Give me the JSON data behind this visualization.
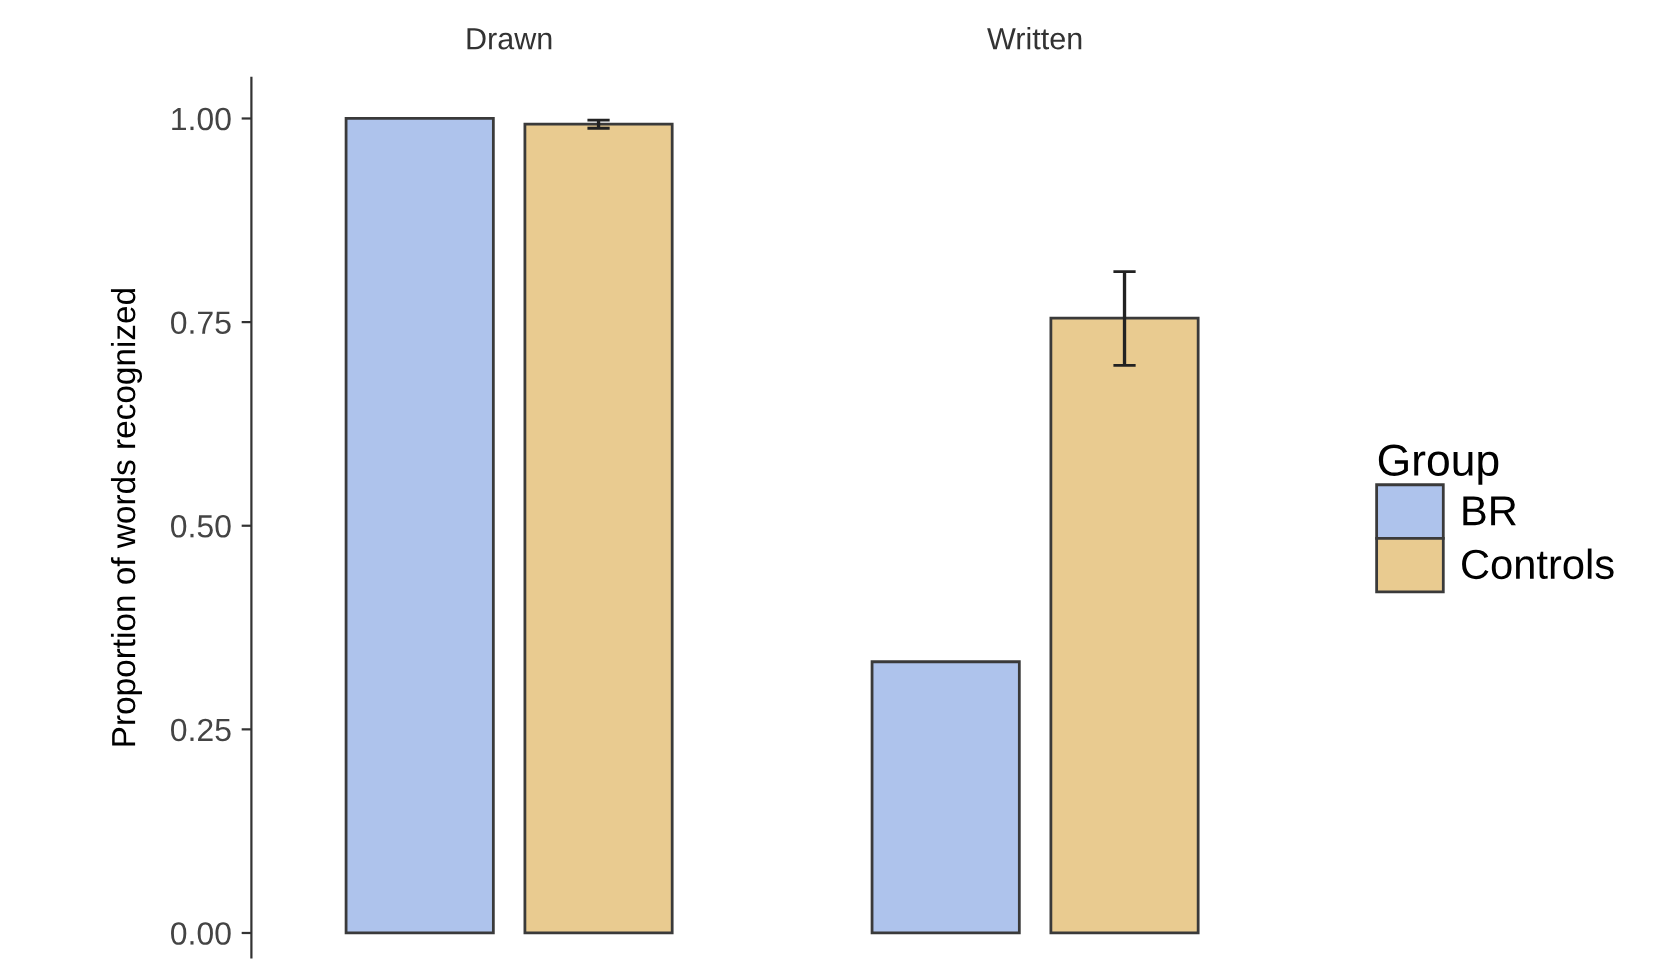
{
  "chart_data": {
    "type": "bar",
    "categories": [
      "Drawn",
      "Written"
    ],
    "ylabel": "Proportion of words recognized",
    "legend_title": "Group",
    "legend": "right",
    "series": [
      {
        "name": "BR",
        "color": "#aec3ec",
        "values": [
          1.0,
          0.333
        ]
      },
      {
        "name": "Controls",
        "color": "#e9cb90",
        "values": [
          0.993,
          0.755
        ],
        "errors": [
          [
            0.988,
            0.998
          ],
          [
            0.697,
            0.812
          ]
        ]
      }
    ],
    "ylim": [
      -0.03,
      1.05
    ],
    "yticks": [
      {
        "value": 0,
        "label": "0.00"
      },
      {
        "value": 0.25,
        "label": "0.25"
      },
      {
        "value": 0.5,
        "label": "0.50"
      },
      {
        "value": 0.75,
        "label": "0.75"
      },
      {
        "value": 1,
        "label": "1.00"
      }
    ],
    "grid": false
  }
}
